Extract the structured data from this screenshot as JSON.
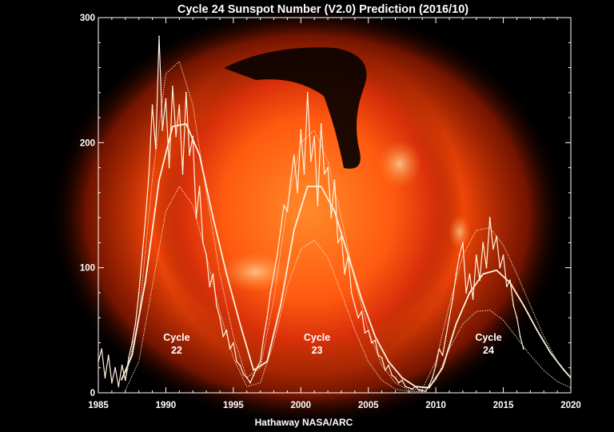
{
  "title": "Cycle 24 Sunspot Number (V2.0) Prediction (2016/10)",
  "credit": "Hathaway  NASA/ARC",
  "colors": {
    "background": "#000000",
    "sun_core": "#ff6a10",
    "sun_glow": "#d9300a",
    "coronal_hole": "#0a0200",
    "axis": "#ffffff",
    "data": "#fff2dc"
  },
  "chart_data": {
    "type": "line",
    "title": "Cycle 24 Sunspot Number (V2.0) Prediction (2016/10)",
    "xlabel": "",
    "ylabel": "",
    "xlim": [
      1985,
      2020
    ],
    "ylim": [
      0,
      300
    ],
    "x_ticks": [
      "1985",
      "1990",
      "1995",
      "2000",
      "2005",
      "2010",
      "2015",
      "2020"
    ],
    "y_ticks": [
      "0",
      "100",
      "200",
      "300"
    ],
    "grid": false,
    "cycle_labels": [
      {
        "line1": "Cycle",
        "line2": "22",
        "year": 1990.8,
        "value": 28
      },
      {
        "line1": "Cycle",
        "line2": "23",
        "year": 2001.2,
        "value": 28
      },
      {
        "line1": "Cycle",
        "line2": "24",
        "year": 2013.9,
        "value": 28
      }
    ],
    "series": [
      {
        "kind": "monthly",
        "x": [
          1985.0,
          1985.25,
          1985.5,
          1985.75,
          1986.0,
          1986.25,
          1986.5,
          1986.75,
          1987.0,
          1987.25,
          1987.5,
          1987.75,
          1988.0,
          1988.25,
          1988.5,
          1988.75,
          1989.0,
          1989.25,
          1989.5,
          1989.75,
          1990.0,
          1990.25,
          1990.5,
          1990.75,
          1991.0,
          1991.25,
          1991.5,
          1991.75,
          1992.0,
          1992.25,
          1992.5,
          1992.75,
          1993.0,
          1993.25,
          1993.5,
          1993.75,
          1994.0,
          1994.25,
          1994.5,
          1994.75,
          1995.0,
          1995.25,
          1995.5,
          1995.75,
          1996.0,
          1996.25,
          1996.5,
          1996.75,
          1997.0,
          1997.25,
          1997.5,
          1997.75,
          1998.0,
          1998.25,
          1998.5,
          1998.75,
          1999.0,
          1999.25,
          1999.5,
          1999.75,
          2000.0,
          2000.25,
          2000.5,
          2000.75,
          2001.0,
          2001.25,
          2001.5,
          2001.75,
          2002.0,
          2002.25,
          2002.5,
          2002.75,
          2003.0,
          2003.25,
          2003.5,
          2003.75,
          2004.0,
          2004.25,
          2004.5,
          2004.75,
          2005.0,
          2005.25,
          2005.5,
          2005.75,
          2006.0,
          2006.25,
          2006.5,
          2006.75,
          2007.0,
          2007.25,
          2007.5,
          2007.75,
          2008.0,
          2008.25,
          2008.5,
          2008.75,
          2009.0,
          2009.25,
          2009.5,
          2009.75,
          2010.0,
          2010.25,
          2010.5,
          2010.75,
          2011.0,
          2011.25,
          2011.5,
          2011.75,
          2012.0,
          2012.25,
          2012.5,
          2012.75,
          2013.0,
          2013.25,
          2013.5,
          2013.75,
          2014.0,
          2014.25,
          2014.5,
          2014.75,
          2015.0,
          2015.25,
          2015.5,
          2015.75,
          2016.0,
          2016.25,
          2016.5
        ],
        "y": [
          25,
          35,
          12,
          30,
          8,
          20,
          5,
          22,
          10,
          28,
          40,
          55,
          80,
          110,
          140,
          175,
          230,
          195,
          285,
          210,
          235,
          180,
          245,
          205,
          230,
          175,
          240,
          190,
          205,
          140,
          165,
          120,
          110,
          85,
          95,
          70,
          60,
          45,
          50,
          35,
          40,
          25,
          22,
          15,
          12,
          8,
          14,
          20,
          25,
          45,
          60,
          80,
          95,
          110,
          130,
          150,
          145,
          170,
          190,
          160,
          210,
          175,
          240,
          185,
          205,
          150,
          215,
          175,
          180,
          140,
          170,
          120,
          125,
          95,
          110,
          80,
          70,
          60,
          65,
          48,
          50,
          40,
          42,
          30,
          28,
          18,
          22,
          14,
          12,
          8,
          10,
          5,
          4,
          3,
          5,
          2,
          2,
          1,
          6,
          12,
          22,
          35,
          30,
          45,
          60,
          75,
          95,
          110,
          120,
          80,
          95,
          75,
          110,
          90,
          120,
          100,
          140,
          115,
          125,
          100,
          110,
          85,
          90,
          70,
          60,
          45,
          35
        ]
      },
      {
        "kind": "smoothed",
        "x": [
          1986.7,
          1987.5,
          1988.5,
          1989.5,
          1990.5,
          1991.5,
          1992.5,
          1993.5,
          1994.5,
          1995.5,
          1996.5,
          1997.5,
          1998.5,
          1999.5,
          2000.5,
          2001.5,
          2002.5,
          2003.5,
          2004.5,
          2005.5,
          2006.5,
          2007.5,
          2008.5,
          2009.5,
          2010.5,
          2011.5,
          2012.5,
          2013.5,
          2014.5,
          2015.5,
          2016.5,
          2017.5,
          2018.5,
          2019.5,
          2020.0
        ],
        "y": [
          10,
          30,
          90,
          170,
          213,
          215,
          190,
          140,
          95,
          55,
          18,
          25,
          70,
          130,
          165,
          165,
          145,
          110,
          75,
          45,
          25,
          12,
          5,
          4,
          20,
          55,
          80,
          95,
          98,
          88,
          70,
          50,
          32,
          18,
          12
        ]
      },
      {
        "kind": "prediction_high",
        "x": [
          1987.0,
          1988.0,
          1989.0,
          1990.0,
          1991.0,
          1992.0,
          1993.0,
          1994.0,
          1995.0,
          1996.0,
          1997.0,
          1998.0,
          1999.0,
          2000.0,
          2001.0,
          2002.0,
          2003.0,
          2004.0,
          2005.0,
          2006.0,
          2007.0,
          2008.0,
          2009.0,
          2010.0,
          2011.0,
          2012.0,
          2013.0,
          2014.0,
          2015.0,
          2016.0,
          2017.0,
          2018.0,
          2019.0,
          2020.0
        ],
        "y": [
          10,
          60,
          170,
          255,
          265,
          230,
          160,
          95,
          45,
          12,
          20,
          75,
          150,
          200,
          210,
          185,
          140,
          90,
          50,
          22,
          8,
          2,
          3,
          25,
          70,
          110,
          130,
          132,
          118,
          95,
          70,
          45,
          25,
          12
        ]
      },
      {
        "kind": "prediction_low",
        "x": [
          1987.0,
          1988.0,
          1989.0,
          1990.0,
          1991.0,
          1992.0,
          1993.0,
          1994.0,
          1995.0,
          1996.0,
          1997.0,
          1998.0,
          1999.0,
          2000.0,
          2001.0,
          2002.0,
          2003.0,
          2004.0,
          2005.0,
          2006.0,
          2007.0,
          2008.0,
          2009.0,
          2010.0,
          2011.0,
          2012.0,
          2013.0,
          2014.0,
          2015.0,
          2016.0,
          2017.0,
          2018.0,
          2019.0,
          2020.0
        ],
        "y": [
          2,
          25,
          85,
          145,
          165,
          150,
          110,
          65,
          28,
          5,
          8,
          40,
          85,
          115,
          122,
          108,
          80,
          50,
          25,
          10,
          3,
          1,
          1,
          10,
          35,
          55,
          65,
          66,
          58,
          44,
          30,
          18,
          9,
          4
        ]
      }
    ]
  }
}
